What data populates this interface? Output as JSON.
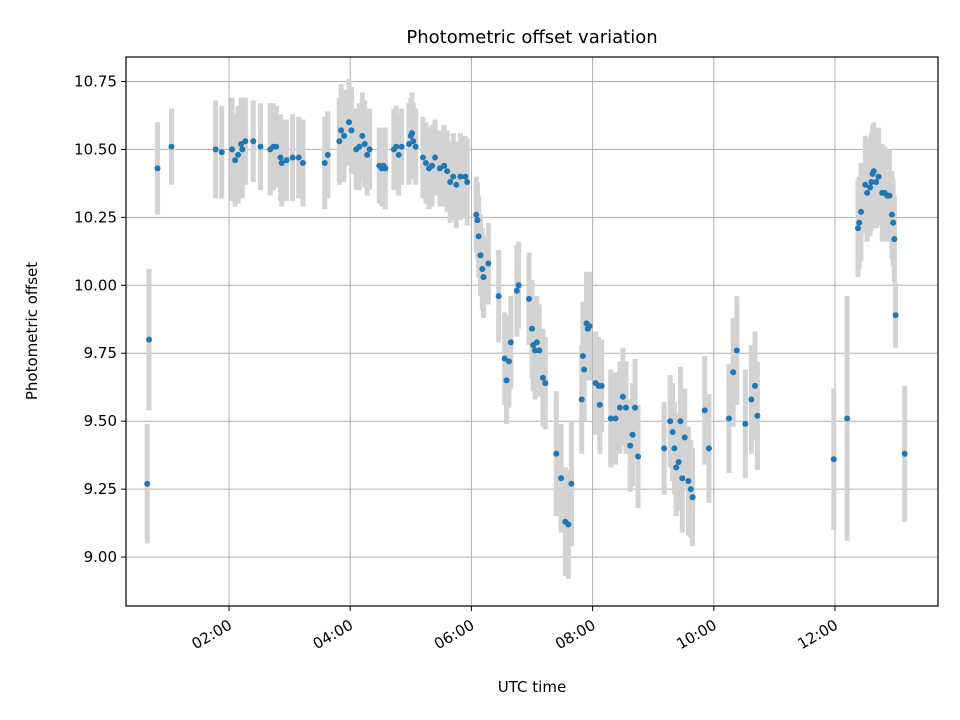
{
  "chart_data": {
    "type": "scatter",
    "title": "Photometric offset variation",
    "xlabel": "UTC time",
    "ylabel": "Photometric offset",
    "x_unit": "hours UTC",
    "xlim": [
      0.3,
      13.7
    ],
    "ylim": [
      8.82,
      10.84
    ],
    "xticks": [
      {
        "value": 2,
        "label": "02:00"
      },
      {
        "value": 4,
        "label": "04:00"
      },
      {
        "value": 6,
        "label": "06:00"
      },
      {
        "value": 8,
        "label": "08:00"
      },
      {
        "value": 10,
        "label": "10:00"
      },
      {
        "value": 12,
        "label": "12:00"
      }
    ],
    "yticks": [
      {
        "value": 9.0,
        "label": "9.00"
      },
      {
        "value": 9.25,
        "label": "9.25"
      },
      {
        "value": 9.5,
        "label": "9.50"
      },
      {
        "value": 9.75,
        "label": "9.75"
      },
      {
        "value": 10.0,
        "label": "10.00"
      },
      {
        "value": 10.25,
        "label": "10.25"
      },
      {
        "value": 10.5,
        "label": "10.50"
      },
      {
        "value": 10.75,
        "label": "10.75"
      }
    ],
    "grid": true,
    "colors": {
      "point": "#1f77b4",
      "errorbar": "#d3d3d3",
      "grid": "#b0b0b0"
    },
    "points": [
      [
        0.65,
        9.27,
        0.22
      ],
      [
        0.68,
        9.8,
        0.26
      ],
      [
        0.82,
        10.43,
        0.17
      ],
      [
        1.05,
        10.51,
        0.14
      ],
      [
        1.78,
        10.5,
        0.18
      ],
      [
        1.88,
        10.49,
        0.17
      ],
      [
        2.05,
        10.5,
        0.19
      ],
      [
        2.1,
        10.46,
        0.17
      ],
      [
        2.15,
        10.48,
        0.18
      ],
      [
        2.2,
        10.52,
        0.17
      ],
      [
        2.22,
        10.5,
        0.18
      ],
      [
        2.27,
        10.53,
        0.16
      ],
      [
        2.4,
        10.53,
        0.15
      ],
      [
        2.52,
        10.51,
        0.16
      ],
      [
        2.68,
        10.5,
        0.17
      ],
      [
        2.73,
        10.51,
        0.16
      ],
      [
        2.78,
        10.51,
        0.15
      ],
      [
        2.85,
        10.47,
        0.16
      ],
      [
        2.87,
        10.45,
        0.16
      ],
      [
        2.95,
        10.46,
        0.15
      ],
      [
        3.05,
        10.47,
        0.16
      ],
      [
        3.15,
        10.47,
        0.15
      ],
      [
        3.22,
        10.45,
        0.16
      ],
      [
        3.58,
        10.45,
        0.17
      ],
      [
        3.63,
        10.48,
        0.16
      ],
      [
        3.82,
        10.53,
        0.16
      ],
      [
        3.85,
        10.57,
        0.17
      ],
      [
        3.9,
        10.55,
        0.17
      ],
      [
        3.98,
        10.6,
        0.16
      ],
      [
        4.02,
        10.57,
        0.16
      ],
      [
        4.1,
        10.5,
        0.15
      ],
      [
        4.15,
        10.51,
        0.16
      ],
      [
        4.2,
        10.55,
        0.16
      ],
      [
        4.24,
        10.52,
        0.16
      ],
      [
        4.28,
        10.48,
        0.15
      ],
      [
        4.32,
        10.5,
        0.15
      ],
      [
        4.48,
        10.44,
        0.14
      ],
      [
        4.52,
        10.43,
        0.14
      ],
      [
        4.55,
        10.44,
        0.14
      ],
      [
        4.58,
        10.43,
        0.15
      ],
      [
        4.72,
        10.5,
        0.15
      ],
      [
        4.76,
        10.51,
        0.15
      ],
      [
        4.8,
        10.48,
        0.15
      ],
      [
        4.85,
        10.51,
        0.14
      ],
      [
        4.97,
        10.52,
        0.15
      ],
      [
        5.0,
        10.55,
        0.14
      ],
      [
        5.02,
        10.56,
        0.15
      ],
      [
        5.04,
        10.53,
        0.14
      ],
      [
        5.08,
        10.51,
        0.14
      ],
      [
        5.2,
        10.47,
        0.15
      ],
      [
        5.25,
        10.45,
        0.15
      ],
      [
        5.3,
        10.43,
        0.15
      ],
      [
        5.35,
        10.44,
        0.15
      ],
      [
        5.4,
        10.47,
        0.14
      ],
      [
        5.48,
        10.43,
        0.14
      ],
      [
        5.55,
        10.44,
        0.15
      ],
      [
        5.6,
        10.42,
        0.15
      ],
      [
        5.65,
        10.38,
        0.15
      ],
      [
        5.7,
        10.4,
        0.16
      ],
      [
        5.75,
        10.37,
        0.16
      ],
      [
        5.82,
        10.4,
        0.16
      ],
      [
        5.9,
        10.4,
        0.15
      ],
      [
        5.93,
        10.38,
        0.16
      ],
      [
        6.08,
        10.26,
        0.14
      ],
      [
        6.1,
        10.24,
        0.14
      ],
      [
        6.12,
        10.18,
        0.15
      ],
      [
        6.15,
        10.11,
        0.15
      ],
      [
        6.18,
        10.06,
        0.15
      ],
      [
        6.2,
        10.03,
        0.15
      ],
      [
        6.28,
        10.08,
        0.15
      ],
      [
        6.45,
        9.96,
        0.17
      ],
      [
        6.55,
        9.73,
        0.17
      ],
      [
        6.58,
        9.65,
        0.16
      ],
      [
        6.62,
        9.72,
        0.17
      ],
      [
        6.65,
        9.79,
        0.17
      ],
      [
        6.75,
        9.98,
        0.17
      ],
      [
        6.78,
        10.0,
        0.16
      ],
      [
        6.95,
        9.95,
        0.17
      ],
      [
        7.0,
        9.84,
        0.18
      ],
      [
        7.02,
        9.78,
        0.17
      ],
      [
        7.05,
        9.76,
        0.18
      ],
      [
        7.08,
        9.79,
        0.17
      ],
      [
        7.12,
        9.76,
        0.17
      ],
      [
        7.18,
        9.66,
        0.18
      ],
      [
        7.22,
        9.64,
        0.17
      ],
      [
        7.4,
        9.38,
        0.23
      ],
      [
        7.48,
        9.29,
        0.2
      ],
      [
        7.55,
        9.13,
        0.2
      ],
      [
        7.6,
        9.12,
        0.2
      ],
      [
        7.65,
        9.27,
        0.23
      ],
      [
        7.82,
        9.58,
        0.2
      ],
      [
        7.84,
        9.74,
        0.2
      ],
      [
        7.86,
        9.69,
        0.19
      ],
      [
        7.9,
        9.86,
        0.19
      ],
      [
        7.92,
        9.84,
        0.19
      ],
      [
        7.95,
        9.85,
        0.2
      ],
      [
        8.05,
        9.64,
        0.19
      ],
      [
        8.1,
        9.63,
        0.18
      ],
      [
        8.12,
        9.56,
        0.18
      ],
      [
        8.15,
        9.63,
        0.17
      ],
      [
        8.3,
        9.51,
        0.18
      ],
      [
        8.38,
        9.51,
        0.17
      ],
      [
        8.45,
        9.55,
        0.17
      ],
      [
        8.5,
        9.59,
        0.18
      ],
      [
        8.55,
        9.55,
        0.17
      ],
      [
        8.62,
        9.41,
        0.17
      ],
      [
        8.66,
        9.45,
        0.19
      ],
      [
        8.7,
        9.55,
        0.18
      ],
      [
        8.75,
        9.37,
        0.19
      ],
      [
        9.18,
        9.4,
        0.17
      ],
      [
        9.28,
        9.5,
        0.17
      ],
      [
        9.32,
        9.46,
        0.18
      ],
      [
        9.35,
        9.4,
        0.17
      ],
      [
        9.38,
        9.33,
        0.18
      ],
      [
        9.42,
        9.35,
        0.18
      ],
      [
        9.45,
        9.5,
        0.2
      ],
      [
        9.48,
        9.29,
        0.2
      ],
      [
        9.52,
        9.44,
        0.18
      ],
      [
        9.58,
        9.28,
        0.2
      ],
      [
        9.62,
        9.25,
        0.18
      ],
      [
        9.65,
        9.22,
        0.18
      ],
      [
        9.85,
        9.54,
        0.2
      ],
      [
        9.92,
        9.4,
        0.2
      ],
      [
        10.25,
        9.51,
        0.2
      ],
      [
        10.32,
        9.68,
        0.2
      ],
      [
        10.38,
        9.76,
        0.2
      ],
      [
        10.52,
        9.49,
        0.2
      ],
      [
        10.62,
        9.58,
        0.2
      ],
      [
        10.68,
        9.63,
        0.2
      ],
      [
        10.72,
        9.52,
        0.2
      ],
      [
        11.98,
        9.36,
        0.26
      ],
      [
        12.2,
        9.51,
        0.45
      ],
      [
        12.38,
        10.21,
        0.18
      ],
      [
        12.4,
        10.23,
        0.17
      ],
      [
        12.43,
        10.27,
        0.18
      ],
      [
        12.5,
        10.37,
        0.18
      ],
      [
        12.53,
        10.34,
        0.18
      ],
      [
        12.58,
        10.36,
        0.18
      ],
      [
        12.6,
        10.38,
        0.18
      ],
      [
        12.62,
        10.41,
        0.18
      ],
      [
        12.64,
        10.42,
        0.18
      ],
      [
        12.68,
        10.38,
        0.17
      ],
      [
        12.72,
        10.4,
        0.18
      ],
      [
        12.78,
        10.34,
        0.18
      ],
      [
        12.82,
        10.34,
        0.17
      ],
      [
        12.86,
        10.33,
        0.17
      ],
      [
        12.9,
        10.33,
        0.17
      ],
      [
        12.94,
        10.26,
        0.16
      ],
      [
        12.96,
        10.23,
        0.16
      ],
      [
        12.98,
        10.17,
        0.16
      ],
      [
        13.0,
        9.89,
        0.12
      ],
      [
        13.15,
        9.38,
        0.25
      ]
    ]
  }
}
